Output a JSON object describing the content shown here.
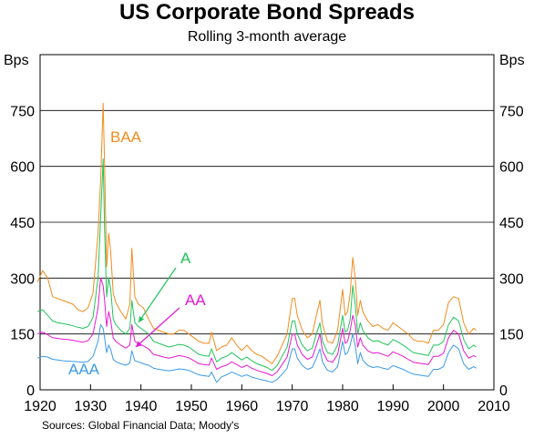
{
  "header": {
    "title": "US Corporate Bond Spreads",
    "subtitle": "Rolling 3-month average"
  },
  "footer": {
    "source": "Sources: Global Financial Data; Moody's"
  },
  "chart_data": {
    "type": "line",
    "title": "US Corporate Bond Spreads",
    "subtitle": "Rolling 3-month average",
    "ylabel_left": "Bps",
    "ylabel_right": "Bps",
    "xlim": [
      1920,
      2010
    ],
    "ylim": [
      0,
      900
    ],
    "x_ticks": [
      1920,
      1930,
      1940,
      1950,
      1960,
      1970,
      1980,
      1990,
      2000,
      2010
    ],
    "y_ticks": [
      0,
      150,
      300,
      450,
      600,
      750
    ],
    "grid": "horizontal",
    "series": [
      {
        "name": "BAA",
        "color": "#f08c1e",
        "x": [
          1919.5,
          1920.5,
          1921.5,
          1922.5,
          1923.5,
          1924.5,
          1925.5,
          1926.5,
          1927.5,
          1928.5,
          1929.5,
          1930.5,
          1931.5,
          1932.0,
          1932.5,
          1932.8,
          1933.2,
          1933.6,
          1934.0,
          1934.5,
          1935.0,
          1936.0,
          1937.0,
          1937.8,
          1938.2,
          1938.8,
          1939.5,
          1940.5,
          1941.5,
          1942.5,
          1943.5,
          1944.5,
          1945.5,
          1946.5,
          1947.5,
          1948.5,
          1949.5,
          1950.5,
          1951.5,
          1952.5,
          1953.5,
          1954.0,
          1955.0,
          1956.0,
          1957.0,
          1958.0,
          1959.0,
          1960.0,
          1961.0,
          1962.0,
          1963.0,
          1964.0,
          1965.0,
          1966.0,
          1967.0,
          1968.0,
          1969.0,
          1970.0,
          1970.5,
          1971.0,
          1972.0,
          1973.0,
          1974.0,
          1974.8,
          1975.5,
          1976.0,
          1977.0,
          1978.0,
          1979.0,
          1980.0,
          1980.5,
          1981.0,
          1981.5,
          1982.0,
          1982.5,
          1983.0,
          1983.5,
          1984.0,
          1985.0,
          1986.0,
          1987.0,
          1988.0,
          1989.0,
          1990.0,
          1991.0,
          1992.0,
          1993.0,
          1994.0,
          1995.0,
          1996.0,
          1997.0,
          1998.0,
          1999.0,
          2000.0,
          2001.0,
          2002.0,
          2003.0,
          2004.0,
          2005.0,
          2006.0,
          2006.5
        ],
        "values": [
          290,
          320,
          300,
          250,
          245,
          240,
          235,
          230,
          215,
          210,
          220,
          260,
          420,
          560,
          770,
          600,
          330,
          420,
          370,
          260,
          235,
          210,
          190,
          230,
          380,
          250,
          230,
          220,
          190,
          165,
          160,
          155,
          150,
          150,
          160,
          160,
          150,
          140,
          130,
          125,
          125,
          155,
          105,
          115,
          120,
          140,
          120,
          105,
          120,
          105,
          95,
          90,
          80,
          70,
          90,
          120,
          150,
          245,
          245,
          200,
          160,
          140,
          150,
          200,
          240,
          175,
          130,
          125,
          160,
          270,
          200,
          210,
          260,
          355,
          300,
          200,
          240,
          210,
          185,
          170,
          175,
          165,
          160,
          180,
          170,
          160,
          150,
          135,
          130,
          130,
          125,
          160,
          160,
          175,
          235,
          250,
          245,
          180,
          150,
          165,
          160
        ]
      },
      {
        "name": "A",
        "color": "#22c45a",
        "x": [
          1919.5,
          1920.5,
          1921.5,
          1922.5,
          1923.5,
          1924.5,
          1925.5,
          1926.5,
          1927.5,
          1928.5,
          1929.5,
          1930.5,
          1931.5,
          1932.0,
          1932.5,
          1932.8,
          1933.2,
          1933.6,
          1934.0,
          1934.5,
          1935.0,
          1936.0,
          1937.0,
          1937.8,
          1938.2,
          1938.8,
          1939.5,
          1940.5,
          1941.5,
          1942.5,
          1943.5,
          1944.5,
          1945.5,
          1946.5,
          1947.5,
          1948.5,
          1949.5,
          1950.5,
          1951.5,
          1952.5,
          1953.5,
          1954.0,
          1955.0,
          1956.0,
          1957.0,
          1958.0,
          1959.0,
          1960.0,
          1961.0,
          1962.0,
          1963.0,
          1964.0,
          1965.0,
          1966.0,
          1967.0,
          1968.0,
          1969.0,
          1970.0,
          1970.5,
          1971.0,
          1972.0,
          1973.0,
          1974.0,
          1974.8,
          1975.5,
          1976.0,
          1977.0,
          1978.0,
          1979.0,
          1980.0,
          1980.5,
          1981.0,
          1981.5,
          1982.0,
          1982.5,
          1983.0,
          1983.5,
          1984.0,
          1985.0,
          1986.0,
          1987.0,
          1988.0,
          1989.0,
          1990.0,
          1991.0,
          1992.0,
          1993.0,
          1994.0,
          1995.0,
          1996.0,
          1997.0,
          1998.0,
          1999.0,
          2000.0,
          2001.0,
          2002.0,
          2003.0,
          2004.0,
          2005.0,
          2006.0,
          2006.5
        ],
        "values": [
          210,
          215,
          200,
          185,
          180,
          178,
          175,
          172,
          168,
          165,
          170,
          195,
          300,
          460,
          620,
          430,
          250,
          300,
          270,
          190,
          175,
          160,
          150,
          165,
          240,
          180,
          170,
          160,
          150,
          130,
          125,
          120,
          115,
          118,
          122,
          120,
          115,
          105,
          95,
          92,
          90,
          110,
          75,
          85,
          90,
          100,
          90,
          80,
          88,
          78,
          70,
          65,
          60,
          52,
          65,
          90,
          115,
          185,
          185,
          150,
          120,
          105,
          112,
          150,
          180,
          130,
          100,
          95,
          120,
          200,
          155,
          160,
          190,
          280,
          230,
          150,
          180,
          160,
          140,
          130,
          132,
          125,
          120,
          135,
          128,
          120,
          110,
          100,
          97,
          95,
          92,
          120,
          120,
          130,
          175,
          195,
          185,
          135,
          110,
          120,
          115
        ]
      },
      {
        "name": "AA",
        "color": "#e619d2",
        "x": [
          1919.5,
          1920.5,
          1921.5,
          1922.5,
          1923.5,
          1924.5,
          1925.5,
          1926.5,
          1927.5,
          1928.5,
          1929.5,
          1930.5,
          1931.5,
          1932.0,
          1932.5,
          1932.8,
          1933.2,
          1933.6,
          1934.0,
          1934.5,
          1935.0,
          1936.0,
          1937.0,
          1937.8,
          1938.2,
          1938.8,
          1939.5,
          1940.5,
          1941.5,
          1942.5,
          1943.5,
          1944.5,
          1945.5,
          1946.5,
          1947.5,
          1948.5,
          1949.5,
          1950.5,
          1951.5,
          1952.5,
          1953.5,
          1954.0,
          1955.0,
          1956.0,
          1957.0,
          1958.0,
          1959.0,
          1960.0,
          1961.0,
          1962.0,
          1963.0,
          1964.0,
          1965.0,
          1966.0,
          1967.0,
          1968.0,
          1969.0,
          1970.0,
          1970.5,
          1971.0,
          1972.0,
          1973.0,
          1974.0,
          1974.8,
          1975.5,
          1976.0,
          1977.0,
          1978.0,
          1979.0,
          1980.0,
          1980.5,
          1981.0,
          1981.5,
          1982.0,
          1982.5,
          1983.0,
          1983.5,
          1984.0,
          1985.0,
          1986.0,
          1987.0,
          1988.0,
          1989.0,
          1990.0,
          1991.0,
          1992.0,
          1993.0,
          1994.0,
          1995.0,
          1996.0,
          1997.0,
          1998.0,
          1999.0,
          2000.0,
          2001.0,
          2002.0,
          2003.0,
          2004.0,
          2005.0,
          2006.0,
          2006.5
        ],
        "values": [
          150,
          155,
          148,
          140,
          138,
          136,
          135,
          133,
          130,
          128,
          132,
          150,
          220,
          300,
          280,
          240,
          170,
          210,
          185,
          140,
          130,
          120,
          112,
          120,
          175,
          130,
          125,
          118,
          110,
          95,
          92,
          88,
          85,
          88,
          92,
          90,
          86,
          78,
          70,
          68,
          66,
          85,
          55,
          62,
          66,
          75,
          68,
          60,
          66,
          58,
          52,
          48,
          44,
          38,
          48,
          68,
          88,
          150,
          150,
          120,
          95,
          82,
          88,
          120,
          150,
          105,
          78,
          74,
          95,
          165,
          125,
          130,
          160,
          200,
          175,
          115,
          140,
          120,
          105,
          98,
          100,
          95,
          90,
          102,
          96,
          90,
          82,
          74,
          72,
          70,
          68,
          90,
          90,
          98,
          140,
          160,
          150,
          105,
          85,
          92,
          88
        ]
      },
      {
        "name": "AAA",
        "color": "#3c9ae6",
        "x": [
          1919.5,
          1920.5,
          1921.5,
          1922.5,
          1923.5,
          1924.5,
          1925.5,
          1926.5,
          1927.5,
          1928.5,
          1929.5,
          1930.5,
          1931.5,
          1932.0,
          1932.5,
          1932.8,
          1933.2,
          1933.6,
          1934.0,
          1934.5,
          1935.0,
          1936.0,
          1937.0,
          1937.8,
          1938.2,
          1938.8,
          1939.5,
          1940.5,
          1941.5,
          1942.5,
          1943.5,
          1944.5,
          1945.5,
          1946.5,
          1947.5,
          1948.5,
          1949.5,
          1950.5,
          1951.5,
          1952.5,
          1953.5,
          1954.0,
          1955.0,
          1956.0,
          1957.0,
          1958.0,
          1959.0,
          1960.0,
          1961.0,
          1962.0,
          1963.0,
          1964.0,
          1965.0,
          1966.0,
          1967.0,
          1968.0,
          1969.0,
          1970.0,
          1970.5,
          1971.0,
          1972.0,
          1973.0,
          1974.0,
          1974.8,
          1975.5,
          1976.0,
          1977.0,
          1978.0,
          1979.0,
          1980.0,
          1980.5,
          1981.0,
          1981.5,
          1982.0,
          1982.5,
          1983.0,
          1983.5,
          1984.0,
          1985.0,
          1986.0,
          1987.0,
          1988.0,
          1989.0,
          1990.0,
          1991.0,
          1992.0,
          1993.0,
          1994.0,
          1995.0,
          1996.0,
          1997.0,
          1998.0,
          1999.0,
          2000.0,
          2001.0,
          2002.0,
          2003.0,
          2004.0,
          2005.0,
          2006.0,
          2006.5
        ],
        "values": [
          85,
          90,
          88,
          82,
          80,
          78,
          77,
          76,
          75,
          74,
          76,
          90,
          130,
          175,
          165,
          140,
          100,
          120,
          108,
          82,
          76,
          70,
          66,
          72,
          105,
          78,
          75,
          70,
          66,
          58,
          55,
          53,
          51,
          53,
          56,
          55,
          52,
          46,
          40,
          38,
          36,
          48,
          20,
          35,
          40,
          48,
          42,
          36,
          40,
          34,
          30,
          27,
          24,
          20,
          28,
          42,
          58,
          110,
          110,
          85,
          65,
          55,
          60,
          85,
          110,
          75,
          52,
          48,
          62,
          130,
          95,
          100,
          120,
          150,
          120,
          70,
          100,
          80,
          65,
          60,
          62,
          58,
          55,
          65,
          60,
          55,
          48,
          42,
          40,
          38,
          36,
          55,
          55,
          62,
          100,
          120,
          110,
          70,
          55,
          62,
          58
        ]
      }
    ],
    "annotations": [
      {
        "text": "BAA",
        "color": "#f08c1e"
      },
      {
        "text": "A",
        "color": "#22c45a"
      },
      {
        "text": "AA",
        "color": "#e619d2"
      },
      {
        "text": "AAA",
        "color": "#3c9ae6"
      }
    ]
  }
}
